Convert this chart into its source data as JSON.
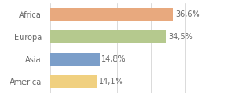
{
  "categories": [
    "Africa",
    "Europa",
    "Asia",
    "America"
  ],
  "values": [
    36.6,
    34.5,
    14.8,
    14.1
  ],
  "labels": [
    "36,6%",
    "34,5%",
    "14,8%",
    "14,1%"
  ],
  "bar_colors": [
    "#e8a97e",
    "#b5c98e",
    "#7b9ec9",
    "#f0d080"
  ],
  "background_color": "#ffffff",
  "xlim": [
    0,
    44
  ],
  "label_fontsize": 7.0,
  "tick_fontsize": 7.0,
  "bar_height": 0.58
}
